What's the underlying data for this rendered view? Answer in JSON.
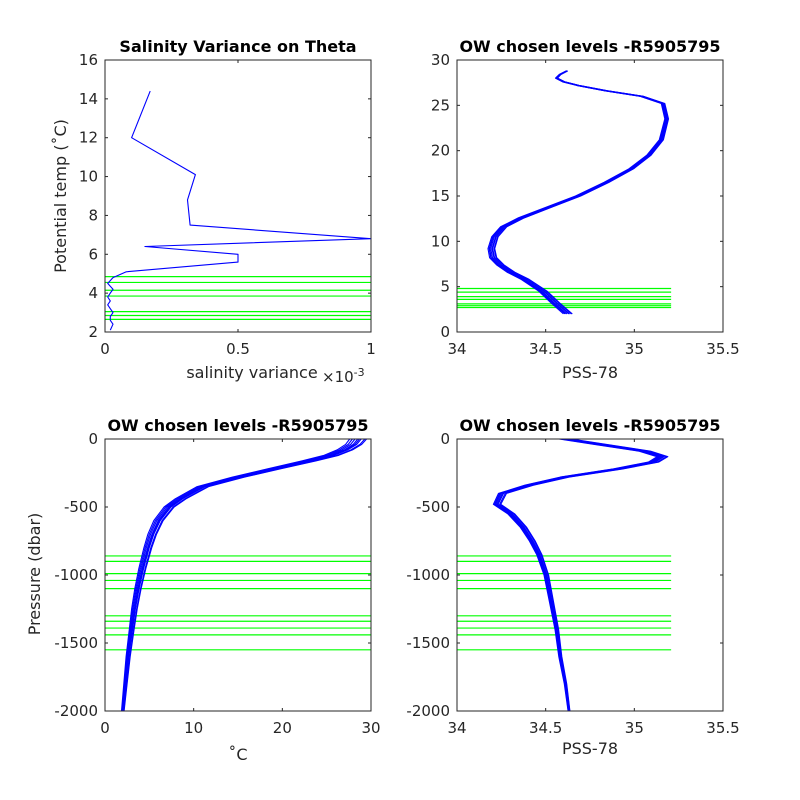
{
  "figure": {
    "background": "#ffffff",
    "data_color": "#0000ff",
    "level_color": "#00ff00"
  },
  "chart_data": [
    {
      "id": "tl",
      "type": "line",
      "title": "Salinity Variance on Theta",
      "xlabel": "salinity variance",
      "xexponent": "×10",
      "xexponent_power": "-3",
      "ylabel": "Potential temp (˚C)",
      "xlim": [
        0,
        1
      ],
      "ylim": [
        2,
        16
      ],
      "xticks": [
        0,
        0.5,
        1
      ],
      "xticklabels": [
        "0",
        "0.5",
        "1"
      ],
      "yticks": [
        2,
        4,
        6,
        8,
        10,
        12,
        14,
        16
      ],
      "yticklabels": [
        "2",
        "4",
        "6",
        "8",
        "10",
        "12",
        "14",
        "16"
      ],
      "grid": false,
      "series": [
        {
          "x": [
            0.17,
            0.1,
            0.34,
            0.31,
            0.32,
            1.0,
            0.15,
            0.5,
            0.5,
            0.08,
            0.03,
            0.01,
            0.03,
            0.02,
            0.01,
            0.02,
            0.01,
            0.02,
            0.03,
            0.02,
            0.02,
            0.03,
            0.02
          ],
          "y": [
            14.4,
            12.0,
            10.1,
            8.8,
            7.5,
            6.8,
            6.4,
            6.0,
            5.6,
            5.1,
            4.8,
            4.5,
            4.2,
            4.0,
            3.8,
            3.6,
            3.4,
            3.2,
            3.0,
            2.8,
            2.6,
            2.4,
            2.1
          ]
        }
      ],
      "levels": [
        4.85,
        4.55,
        4.15,
        3.85,
        3.05,
        2.85,
        2.65
      ]
    },
    {
      "id": "tr",
      "type": "line",
      "title": "OW chosen levels -R5905795",
      "xlabel": "PSS-78",
      "ylabel": "",
      "xlim": [
        34,
        35.5
      ],
      "ylim": [
        0,
        30
      ],
      "xticks": [
        34,
        34.5,
        35,
        35.5
      ],
      "xticklabels": [
        "34",
        "34.5",
        "35",
        "35.5"
      ],
      "yticks": [
        0,
        5,
        10,
        15,
        20,
        25,
        30
      ],
      "yticklabels": [
        "0",
        "5",
        "10",
        "15",
        "20",
        "25",
        "30"
      ],
      "grid": false,
      "profile": {
        "salinity": [
          34.62,
          34.55,
          34.48,
          34.38,
          34.3,
          34.24,
          34.2,
          34.19,
          34.21,
          34.26,
          34.36,
          34.52,
          34.68,
          34.84,
          34.98,
          35.08,
          35.15,
          35.18,
          35.16,
          35.04,
          34.84,
          34.68,
          34.6,
          34.56,
          34.58,
          34.62
        ],
        "temperature": [
          2.0,
          3.2,
          4.5,
          5.8,
          6.6,
          7.4,
          8.2,
          9.2,
          10.5,
          11.6,
          12.6,
          13.8,
          15.0,
          16.5,
          18.0,
          19.5,
          21.2,
          23.5,
          25.2,
          26.0,
          26.6,
          27.2,
          27.6,
          28.0,
          28.4,
          28.8
        ]
      },
      "profile_offsets": [
        0,
        0.015,
        -0.012,
        0.025,
        -0.02,
        0.03,
        -0.008,
        0.01
      ],
      "levels": [
        4.8,
        4.4,
        3.9,
        3.6,
        3.1,
        2.9,
        2.7
      ]
    },
    {
      "id": "bl",
      "type": "line",
      "title": "OW chosen levels -R5905795",
      "xlabel": "˚C",
      "ylabel": "Pressure (dbar)",
      "xlim": [
        0,
        30
      ],
      "ylim": [
        -2000,
        0
      ],
      "xticks": [
        0,
        10,
        20,
        30
      ],
      "xticklabels": [
        "0",
        "10",
        "20",
        "30"
      ],
      "yticks": [
        -2000,
        -1500,
        -1000,
        -500,
        0
      ],
      "yticklabels": [
        "-2000",
        "-1500",
        "-1000",
        "-500",
        "0"
      ],
      "grid": false,
      "profile": {
        "temperature": [
          28.5,
          28.0,
          27.0,
          25.5,
          23.0,
          19.0,
          15.0,
          11.0,
          8.5,
          7.2,
          6.0,
          5.3,
          4.8,
          4.2,
          3.7,
          3.3,
          3.0,
          2.6,
          2.3,
          2.0
        ],
        "pressure": [
          0,
          -40,
          -80,
          -120,
          -160,
          -220,
          -280,
          -350,
          -440,
          -500,
          -600,
          -700,
          -800,
          -950,
          -1100,
          -1250,
          -1400,
          -1600,
          -1800,
          -2000
        ]
      },
      "profile_offsets": [
        0,
        0.4,
        -0.3,
        0.8,
        -0.6,
        0.2,
        1.0,
        -0.9
      ],
      "levels": [
        -860,
        -900,
        -990,
        -1040,
        -1100,
        -1300,
        -1340,
        -1390,
        -1440,
        -1550
      ]
    },
    {
      "id": "br",
      "type": "line",
      "title": "OW chosen levels -R5905795",
      "xlabel": "PSS-78",
      "ylabel": "",
      "xlim": [
        34,
        35.5
      ],
      "ylim": [
        -2000,
        0
      ],
      "xticks": [
        34,
        34.5,
        35,
        35.5
      ],
      "xticklabels": [
        "34",
        "34.5",
        "35",
        "35.5"
      ],
      "yticks": [
        -2000,
        -1500,
        -1000,
        -500,
        0
      ],
      "yticklabels": [
        "-2000",
        "-1500",
        "-1000",
        "-500",
        "0"
      ],
      "grid": false,
      "profile": {
        "salinity": [
          34.6,
          34.8,
          35.05,
          35.15,
          35.1,
          34.9,
          34.6,
          34.4,
          34.25,
          34.22,
          34.3,
          34.37,
          34.42,
          34.46,
          34.5,
          34.53,
          34.56,
          34.58,
          34.61,
          34.63
        ],
        "pressure": [
          0,
          -40,
          -90,
          -130,
          -170,
          -220,
          -280,
          -340,
          -400,
          -480,
          -550,
          -650,
          -750,
          -850,
          -1000,
          -1200,
          -1400,
          -1600,
          -1800,
          -2000
        ]
      },
      "profile_offsets": [
        0,
        0.02,
        -0.015,
        0.035,
        -0.025,
        0.01,
        0.045,
        -0.01
      ],
      "levels": [
        -860,
        -900,
        -990,
        -1040,
        -1100,
        -1300,
        -1340,
        -1390,
        -1440,
        -1550
      ]
    }
  ]
}
